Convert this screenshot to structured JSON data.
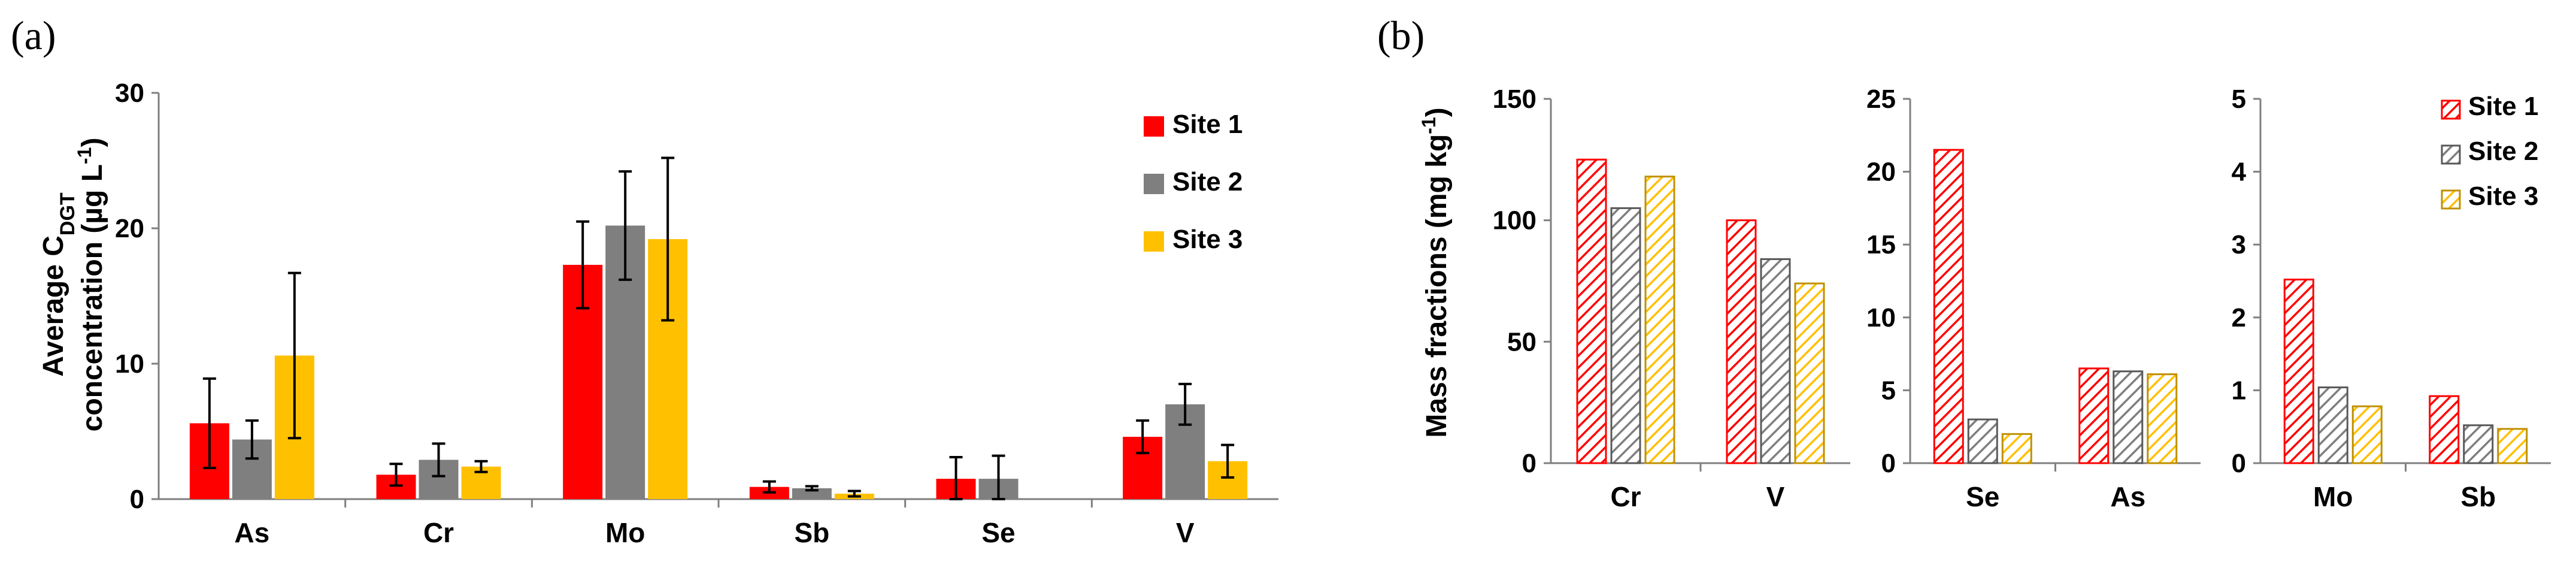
{
  "panels": {
    "a": "(a)",
    "b": "(b)"
  },
  "colors": {
    "site1": "#ff0000",
    "site2": "#7f7f7f",
    "site3": "#ffc000"
  },
  "chart_data": [
    {
      "type": "bar",
      "id": "panel-a",
      "ylabel_line1": "Average C",
      "ylabel_sub": "DGT",
      "ylabel_line2": "concentration (µg L",
      "ylabel_sup": "-1",
      "ylabel_close": ")",
      "ylim": [
        0,
        30
      ],
      "yticks": [
        "0",
        "10",
        "20",
        "30"
      ],
      "categories": [
        "As",
        "Cr",
        "Mo",
        "Sb",
        "Se",
        "V"
      ],
      "legend": [
        "Site 1",
        "Site 2",
        "Site 3"
      ],
      "series": [
        {
          "name": "Site 1",
          "values": [
            5.6,
            1.8,
            17.3,
            0.9,
            1.5,
            4.6
          ],
          "errors": [
            3.3,
            0.8,
            3.2,
            0.4,
            1.6,
            1.2
          ]
        },
        {
          "name": "Site 2",
          "values": [
            4.4,
            2.9,
            20.2,
            0.8,
            1.5,
            7.0
          ],
          "errors": [
            1.4,
            1.2,
            4.0,
            0.15,
            1.7,
            1.5
          ]
        },
        {
          "name": "Site 3",
          "values": [
            10.6,
            2.4,
            19.2,
            0.4,
            0,
            2.8
          ],
          "errors": [
            6.1,
            0.4,
            6.0,
            0.2,
            0,
            1.2
          ]
        }
      ]
    },
    {
      "type": "bar",
      "id": "panel-b1",
      "ylabel_main": "Mass fractions (mg kg",
      "ylabel_sup": "-1",
      "ylabel_close": ")",
      "ylim": [
        0,
        150
      ],
      "yticks": [
        "0",
        "50",
        "100",
        "150"
      ],
      "categories": [
        "Cr",
        "V"
      ],
      "series": [
        {
          "name": "Site 1",
          "values": [
            125,
            100
          ]
        },
        {
          "name": "Site 2",
          "values": [
            105,
            84
          ]
        },
        {
          "name": "Site 3",
          "values": [
            118,
            74
          ]
        }
      ]
    },
    {
      "type": "bar",
      "id": "panel-b2",
      "ylim": [
        0,
        25
      ],
      "yticks": [
        "0",
        "5",
        "10",
        "15",
        "20",
        "25"
      ],
      "categories": [
        "Se",
        "As"
      ],
      "series": [
        {
          "name": "Site 1",
          "values": [
            21.5,
            6.5
          ]
        },
        {
          "name": "Site 2",
          "values": [
            3.0,
            6.3
          ]
        },
        {
          "name": "Site 3",
          "values": [
            2.0,
            6.1
          ]
        }
      ]
    },
    {
      "type": "bar",
      "id": "panel-b3",
      "ylim": [
        0,
        5
      ],
      "yticks": [
        "0",
        "1",
        "2",
        "3",
        "4",
        "5"
      ],
      "categories": [
        "Mo",
        "Sb"
      ],
      "legend": [
        "Site 1",
        "Site 2",
        "Site 3"
      ],
      "series": [
        {
          "name": "Site 1",
          "values": [
            2.52,
            0.92
          ]
        },
        {
          "name": "Site 2",
          "values": [
            1.04,
            0.52
          ]
        },
        {
          "name": "Site 3",
          "values": [
            0.78,
            0.47
          ]
        }
      ]
    }
  ]
}
